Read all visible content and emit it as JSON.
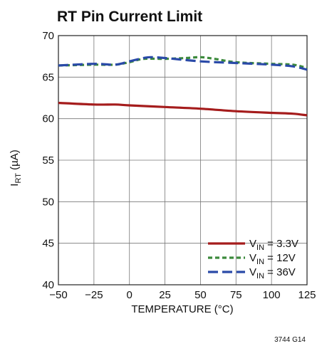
{
  "chart_data": {
    "type": "line",
    "title": "RT Pin Current Limit",
    "xlabel": "TEMPERATURE (°C)",
    "ylabel": {
      "main": "I",
      "sub": "RT",
      "unit": " (µA)"
    },
    "xlim": [
      -50,
      125
    ],
    "ylim": [
      40,
      70
    ],
    "xticks": [
      "−50",
      "−25",
      "0",
      "25",
      "50",
      "75",
      "100",
      "125"
    ],
    "yticks": [
      "40",
      "45",
      "50",
      "55",
      "60",
      "65",
      "70"
    ],
    "grid": true,
    "legend_position": "bottom-right",
    "series": [
      {
        "name": "V_IN = 3.3V",
        "label_main": "V",
        "label_sub": "IN",
        "label_rest": " = 3.3V",
        "color": "#a51c1c",
        "style": "solid",
        "x": [
          -50,
          -25,
          -10,
          0,
          25,
          50,
          75,
          100,
          115,
          125
        ],
        "y": [
          61.9,
          61.7,
          61.7,
          61.6,
          61.4,
          61.2,
          60.9,
          60.7,
          60.6,
          60.4
        ]
      },
      {
        "name": "V_IN = 12V",
        "label_main": "V",
        "label_sub": "IN",
        "label_rest": " = 12V",
        "color": "#3c8a3c",
        "style": "short-dash",
        "x": [
          -50,
          -25,
          -10,
          0,
          10,
          25,
          40,
          50,
          60,
          75,
          100,
          115,
          125
        ],
        "y": [
          66.4,
          66.5,
          66.5,
          66.8,
          67.2,
          67.2,
          67.3,
          67.4,
          67.2,
          66.8,
          66.6,
          66.5,
          66.1
        ]
      },
      {
        "name": "V_IN = 36V",
        "label_main": "V",
        "label_sub": "IN",
        "label_rest": " = 36V",
        "color": "#2a4aa8",
        "style": "long-dash",
        "x": [
          -50,
          -25,
          -10,
          0,
          10,
          15,
          25,
          50,
          75,
          100,
          115,
          125
        ],
        "y": [
          66.4,
          66.6,
          66.5,
          66.9,
          67.3,
          67.4,
          67.3,
          66.9,
          66.7,
          66.5,
          66.3,
          65.9
        ]
      }
    ],
    "figure_id": "3744 G14"
  }
}
